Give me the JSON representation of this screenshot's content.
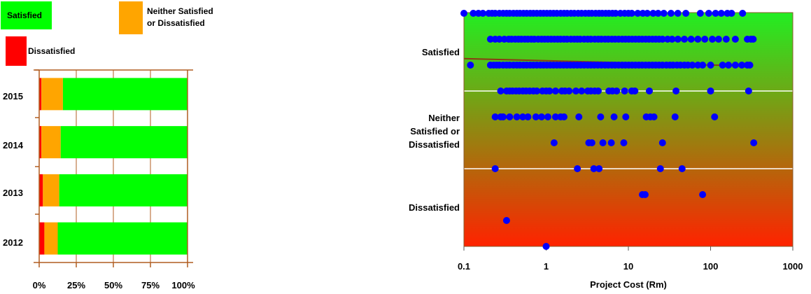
{
  "chart_data": [
    {
      "type": "bar",
      "orientation": "horizontal",
      "stacked": true,
      "percent": true,
      "categories": [
        "2015",
        "2014",
        "2013",
        "2012"
      ],
      "series": [
        {
          "name": "Dissatisfied",
          "color": "#ff0000",
          "values": [
            1.5,
            1.5,
            2.5,
            3.5
          ]
        },
        {
          "name": "Neither Satisfied or Dissatisfied",
          "color": "#ffa500",
          "values": [
            14.5,
            13,
            11,
            9
          ]
        },
        {
          "name": "Satisfied",
          "color": "#00ff00",
          "values": [
            84,
            85.5,
            86.5,
            87.5
          ]
        }
      ],
      "xticks": [
        "0%",
        "25%",
        "50%",
        "75%",
        "100%"
      ],
      "xlim": [
        0,
        100
      ],
      "legend": {
        "position": "top",
        "entries": [
          {
            "text_lines": [
              "Satisfied"
            ],
            "color": "#00ff00"
          },
          {
            "text_lines": [
              "Neither Satisfied",
              "or Dissatisfied"
            ],
            "color": "#ffa500"
          },
          {
            "text_lines": [
              "Dissatisfied"
            ],
            "color": "#ff0000"
          }
        ]
      }
    },
    {
      "type": "scatter",
      "xscale": "log",
      "xlim": [
        0.1,
        1000
      ],
      "xlabel": "Project Cost (Rm)",
      "xticks": [
        "0.1",
        "1",
        "10",
        "100",
        "1000"
      ],
      "ycategories": [
        {
          "lines": [
            "Satisfied"
          ]
        },
        {
          "lines": [
            "Neither",
            "Satisfied or",
            "Dissatisfied"
          ]
        },
        {
          "lines": [
            "Dissatisfied"
          ]
        }
      ],
      "ylevels": [
        5,
        4,
        3,
        2,
        1,
        0,
        -1,
        -2,
        -3
      ],
      "point_color": "#0000ff",
      "background_gradient": [
        "#22ee22",
        "#ff2200"
      ],
      "rows": [
        {
          "y": 5,
          "x": [
            0.1,
            0.13,
            0.15,
            0.17,
            0.2,
            0.22,
            0.24,
            0.27,
            0.3,
            0.33,
            0.36,
            0.4,
            0.44,
            0.48,
            0.53,
            0.58,
            0.64,
            0.7,
            0.77,
            0.85,
            0.93,
            1.02,
            1.12,
            1.23,
            1.35,
            1.5,
            1.65,
            1.8,
            2.0,
            2.2,
            2.45,
            2.7,
            3.0,
            3.3,
            3.6,
            4.0,
            4.4,
            4.8,
            5.3,
            5.8,
            6.4,
            7.0,
            8.0,
            9.0,
            10,
            11,
            13,
            15,
            17,
            20,
            23,
            27,
            33,
            40,
            50,
            75,
            95,
            115,
            135,
            160,
            180,
            245
          ]
        },
        {
          "y": 4,
          "x": [
            0.21,
            0.24,
            0.27,
            0.31,
            0.35,
            0.38,
            0.42,
            0.46,
            0.5,
            0.55,
            0.6,
            0.66,
            0.72,
            0.8,
            0.88,
            0.96,
            1.05,
            1.15,
            1.26,
            1.38,
            1.5,
            1.65,
            1.8,
            2.0,
            2.2,
            2.4,
            2.6,
            2.9,
            3.2,
            3.5,
            3.9,
            4.3,
            4.7,
            5.2,
            5.7,
            6.3,
            6.9,
            7.6,
            8.4,
            9.2,
            10.1,
            11.1,
            12.2,
            13.4,
            14.7,
            16.2,
            17.8,
            19.6,
            21.5,
            23.6,
            26,
            30,
            34,
            40,
            48,
            58,
            70,
            85,
            105,
            125,
            155,
            200,
            280,
            310,
            330
          ]
        },
        {
          "y": 3,
          "x": [
            0.12,
            0.21,
            0.23,
            0.25,
            0.27,
            0.3,
            0.33,
            0.36,
            0.4,
            0.44,
            0.48,
            0.53,
            0.58,
            0.64,
            0.7,
            0.77,
            0.85,
            0.93,
            1.02,
            1.12,
            1.23,
            1.35,
            1.48,
            1.63,
            1.79,
            1.97,
            2.17,
            2.39,
            2.63,
            2.9,
            3.2,
            3.5,
            3.85,
            4.25,
            4.7,
            5.2,
            5.7,
            6.3,
            6.9,
            7.6,
            8.4,
            9.2,
            10.1,
            11.1,
            12.2,
            13.4,
            14.7,
            16.2,
            17.8,
            19.6,
            21.5,
            23.6,
            26,
            29,
            32,
            35,
            39,
            43,
            48,
            53,
            60,
            70,
            80,
            100,
            140,
            165,
            200,
            240,
            280,
            300
          ]
        },
        {
          "y": 2,
          "x": [
            0.28,
            0.33,
            0.36,
            0.39,
            0.43,
            0.47,
            0.52,
            0.57,
            0.63,
            0.7,
            0.77,
            0.9,
            1.0,
            1.1,
            1.3,
            1.55,
            1.7,
            1.9,
            2.3,
            2.7,
            3.2,
            3.5,
            3.9,
            4.3,
            5.8,
            6.4,
            7.2,
            9.0,
            11,
            12,
            18,
            38,
            100,
            290
          ]
        },
        {
          "y": 1,
          "x": [
            0.24,
            0.28,
            0.3,
            0.36,
            0.44,
            0.52,
            0.6,
            0.75,
            0.88,
            1.05,
            1.3,
            1.5,
            1.65,
            2.5,
            4.6,
            6.7,
            9.3,
            16.5,
            18.5,
            20.5,
            37,
            112
          ]
        },
        {
          "y": 0,
          "x": [
            1.25,
            3.3,
            3.6,
            4.9,
            6.2,
            8.8,
            26,
            335
          ]
        },
        {
          "y": -1,
          "x": [
            0.24,
            2.4,
            3.8,
            4.4,
            24.5,
            45
          ]
        },
        {
          "y": -2,
          "x": [
            14.8,
            16,
            80
          ]
        },
        {
          "y": -3,
          "x": [
            0.33
          ]
        },
        {
          "y": -4,
          "x": [
            1.0
          ]
        }
      ],
      "trend": {
        "color": "#8b3a14",
        "points": [
          [
            0.1,
            3.25
          ],
          [
            10,
            3.09
          ],
          [
            20,
            3.05
          ],
          [
            100,
            3.0
          ],
          [
            330,
            2.98
          ]
        ]
      }
    }
  ]
}
